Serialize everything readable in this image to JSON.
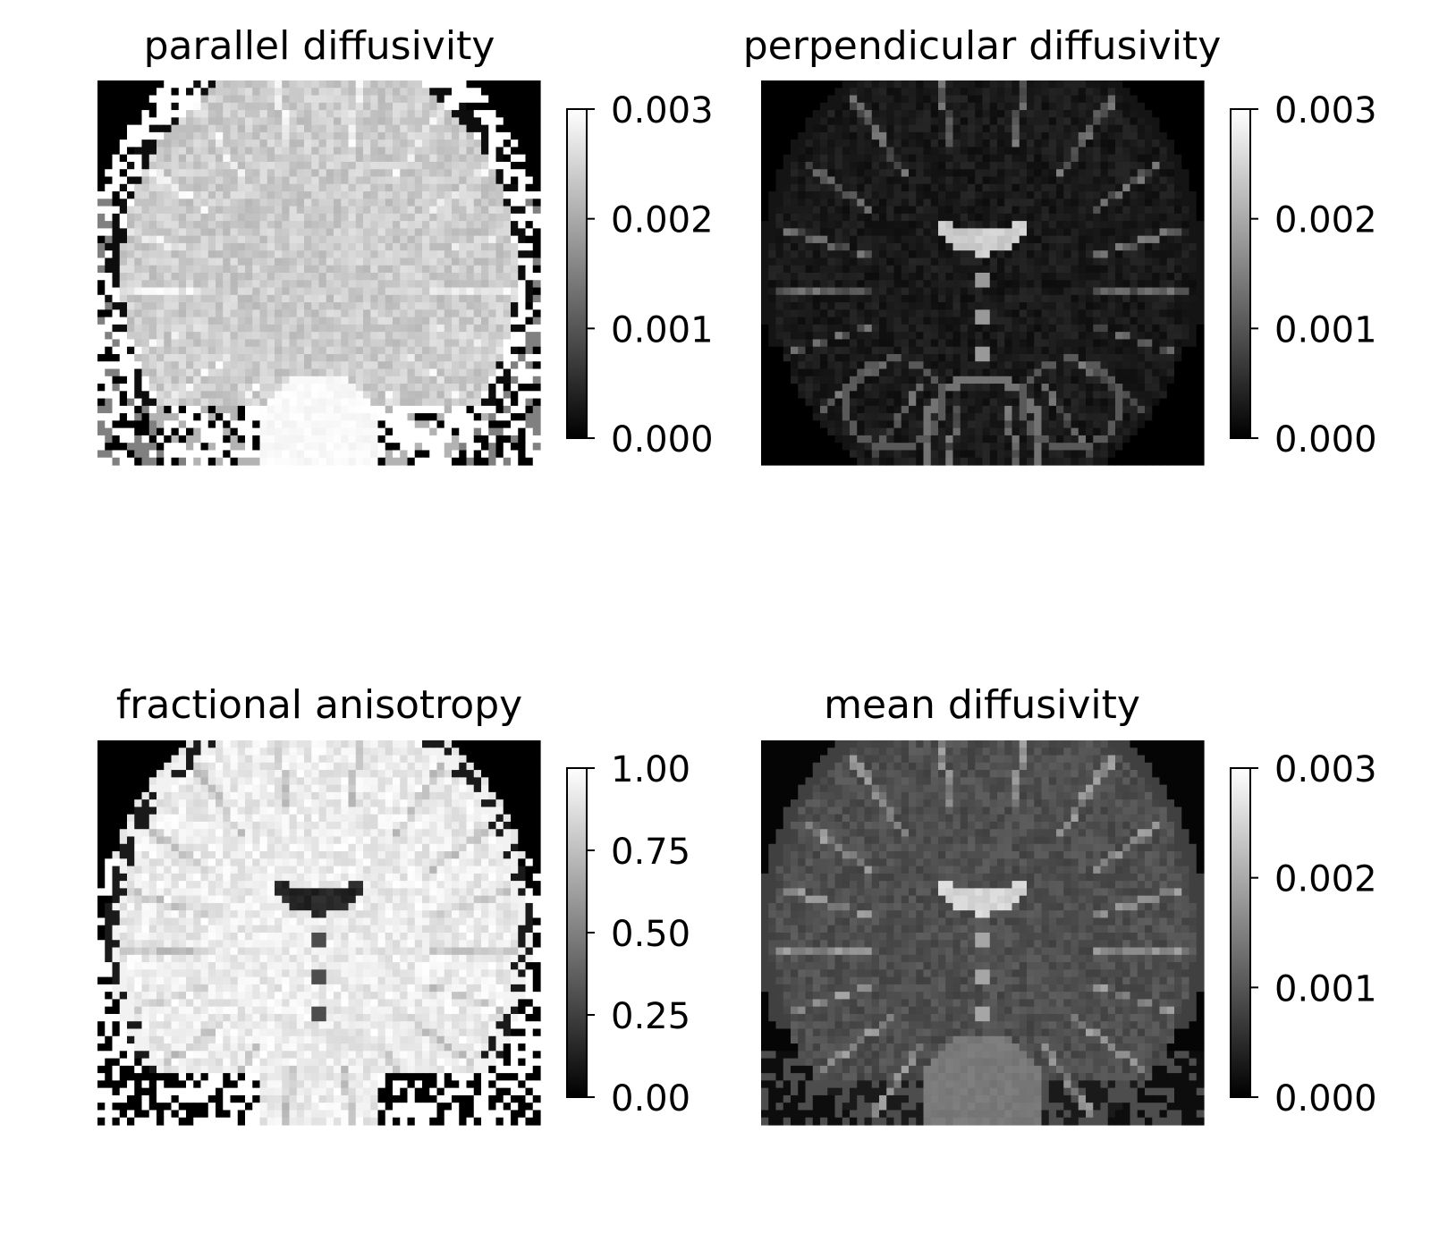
{
  "figure": {
    "background": "#ffffff",
    "colormap": "gray"
  },
  "chart_data": [
    {
      "type": "heatmap",
      "title": "parallel diffusivity",
      "axes_visible": false,
      "colorbar": {
        "vmin": 0.0,
        "vmax": 0.003,
        "ticks": [
          0.0,
          0.001,
          0.002,
          0.003
        ],
        "tick_labels": [
          "0.000",
          "0.001",
          "0.002",
          "0.003"
        ]
      },
      "image": {
        "rows": 52,
        "cols": 60,
        "content": "coronal brain slice, parallel diffusivity map; tissue bright (~0.0015–0.0025), noisy background pixels black/white"
      }
    },
    {
      "type": "heatmap",
      "title": "perpendicular diffusivity",
      "axes_visible": false,
      "colorbar": {
        "vmin": 0.0,
        "vmax": 0.003,
        "ticks": [
          0.0,
          0.001,
          0.002,
          0.003
        ],
        "tick_labels": [
          "0.000",
          "0.001",
          "0.002",
          "0.003"
        ]
      },
      "image": {
        "rows": 52,
        "cols": 60,
        "content": "coronal brain slice, perpendicular diffusivity map; mostly dark tissue, bright ventricles and CSF"
      }
    },
    {
      "type": "heatmap",
      "title": "fractional anisotropy",
      "axes_visible": false,
      "colorbar": {
        "vmin": 0.0,
        "vmax": 1.0,
        "ticks": [
          0.0,
          0.25,
          0.5,
          0.75,
          1.0
        ],
        "tick_labels": [
          "0.00",
          "0.25",
          "0.50",
          "0.75",
          "1.00"
        ]
      },
      "image": {
        "rows": 52,
        "cols": 60,
        "content": "coronal brain slice, fractional anisotropy map; tissue near white (~0.9–1.0), dark ventricles"
      }
    },
    {
      "type": "heatmap",
      "title": "mean diffusivity",
      "axes_visible": false,
      "colorbar": {
        "vmin": 0.0,
        "vmax": 0.003,
        "ticks": [
          0.0,
          0.001,
          0.002,
          0.003
        ],
        "tick_labels": [
          "0.000",
          "0.001",
          "0.002",
          "0.003"
        ]
      },
      "image": {
        "rows": 52,
        "cols": 60,
        "content": "coronal brain slice, mean diffusivity map; gray tissue (~0.0008), bright ventricles and CSF"
      }
    }
  ]
}
